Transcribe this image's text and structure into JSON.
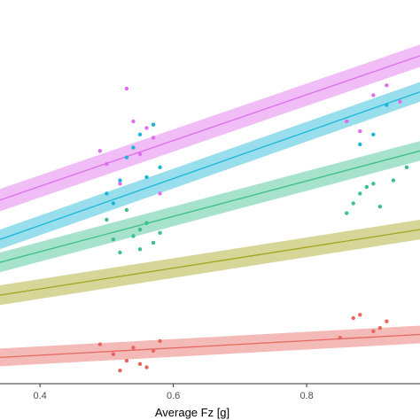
{
  "chart_data": {
    "type": "scatter",
    "title": "",
    "xlabel": "Average Fz [g]",
    "ylabel": "",
    "xlim": [
      0.34,
      0.97
    ],
    "ylim": [
      0,
      1
    ],
    "x_ticks": [
      0.4,
      0.6,
      0.8
    ],
    "x_tick_labels": [
      "0.4",
      "0.6",
      "0.8"
    ],
    "grid": false,
    "legend": "none",
    "series": [
      {
        "color": "#e7675f",
        "fit": {
          "x": [
            0.34,
            0.97
          ],
          "y": [
            0.08,
            0.15
          ],
          "band": 0.027
        },
        "points": [
          [
            0.49,
            0.12
          ],
          [
            0.51,
            0.09
          ],
          [
            0.52,
            0.04
          ],
          [
            0.53,
            0.07
          ],
          [
            0.54,
            0.11
          ],
          [
            0.55,
            0.06
          ],
          [
            0.56,
            0.05
          ],
          [
            0.57,
            0.1
          ],
          [
            0.58,
            0.13
          ],
          [
            0.85,
            0.14
          ],
          [
            0.87,
            0.2
          ],
          [
            0.88,
            0.21
          ],
          [
            0.9,
            0.16
          ],
          [
            0.91,
            0.17
          ],
          [
            0.92,
            0.19
          ]
        ]
      },
      {
        "color": "#a3a51c",
        "fit": {
          "x": [
            0.34,
            0.97
          ],
          "y": [
            0.27,
            0.47
          ],
          "band": 0.03
        }
      },
      {
        "color": "#3cbf8d",
        "fit": {
          "x": [
            0.34,
            0.97
          ],
          "y": [
            0.37,
            0.71
          ],
          "band": 0.03
        },
        "points": [
          [
            0.5,
            0.5
          ],
          [
            0.51,
            0.44
          ],
          [
            0.52,
            0.4
          ],
          [
            0.53,
            0.53
          ],
          [
            0.54,
            0.45
          ],
          [
            0.55,
            0.47
          ],
          [
            0.55,
            0.41
          ],
          [
            0.56,
            0.49
          ],
          [
            0.57,
            0.43
          ],
          [
            0.58,
            0.46
          ],
          [
            0.86,
            0.52
          ],
          [
            0.87,
            0.55
          ],
          [
            0.88,
            0.58
          ],
          [
            0.89,
            0.6
          ],
          [
            0.9,
            0.61
          ],
          [
            0.91,
            0.54
          ],
          [
            0.93,
            0.62
          ],
          [
            0.95,
            0.66
          ]
        ]
      },
      {
        "color": "#1ab6d8",
        "fit": {
          "x": [
            0.34,
            0.97
          ],
          "y": [
            0.44,
            0.89
          ],
          "band": 0.03
        },
        "points": [
          [
            0.5,
            0.58
          ],
          [
            0.51,
            0.55
          ],
          [
            0.52,
            0.62
          ],
          [
            0.53,
            0.69
          ],
          [
            0.54,
            0.72
          ],
          [
            0.55,
            0.76
          ],
          [
            0.56,
            0.63
          ],
          [
            0.57,
            0.79
          ],
          [
            0.58,
            0.66
          ],
          [
            0.88,
            0.73
          ],
          [
            0.9,
            0.76
          ],
          [
            0.92,
            0.85
          ]
        ]
      },
      {
        "color": "#de6dec",
        "fit": {
          "x": [
            0.34,
            0.97
          ],
          "y": [
            0.56,
            1.0
          ],
          "band": 0.034
        },
        "points": [
          [
            0.49,
            0.71
          ],
          [
            0.5,
            0.67
          ],
          [
            0.52,
            0.61
          ],
          [
            0.53,
            0.9
          ],
          [
            0.54,
            0.8
          ],
          [
            0.55,
            0.7
          ],
          [
            0.56,
            0.78
          ],
          [
            0.57,
            0.75
          ],
          [
            0.58,
            0.58
          ],
          [
            0.86,
            0.8
          ],
          [
            0.88,
            0.77
          ],
          [
            0.9,
            0.88
          ],
          [
            0.92,
            0.91
          ],
          [
            0.94,
            0.86
          ]
        ]
      }
    ]
  }
}
